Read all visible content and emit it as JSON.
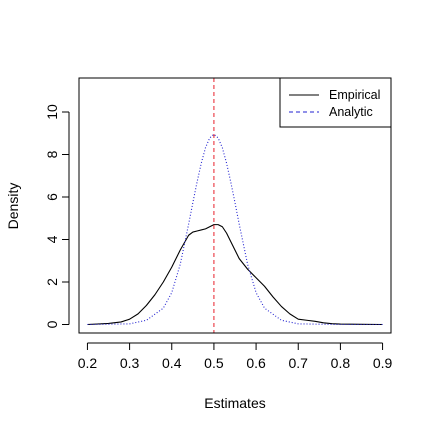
{
  "chart_data": {
    "type": "line",
    "title": "",
    "xlabel": "Estimates",
    "ylabel": "Density",
    "xlim": [
      0.18,
      0.92
    ],
    "ylim": [
      -0.4,
      11.6
    ],
    "x_ticks": [
      0.2,
      0.3,
      0.4,
      0.5,
      0.6,
      0.7,
      0.8,
      0.9
    ],
    "x_tick_labels": [
      "0.2",
      "0.3",
      "0.4",
      "0.5",
      "0.6",
      "0.7",
      "0.8",
      "0.9"
    ],
    "y_ticks": [
      0,
      2,
      4,
      6,
      8,
      10
    ],
    "y_tick_labels": [
      "0",
      "2",
      "4",
      "6",
      "8",
      "10"
    ],
    "grid": false,
    "legend_position": "top-right",
    "reference_line": {
      "x": 0.5,
      "color": "#e8202a",
      "style": "dashed"
    },
    "series": [
      {
        "name": "Empirical",
        "color": "#000000",
        "style": "solid",
        "x": [
          0.2,
          0.25,
          0.28,
          0.3,
          0.32,
          0.34,
          0.36,
          0.38,
          0.4,
          0.42,
          0.44,
          0.45,
          0.46,
          0.47,
          0.48,
          0.49,
          0.5,
          0.51,
          0.52,
          0.53,
          0.54,
          0.55,
          0.56,
          0.58,
          0.6,
          0.62,
          0.64,
          0.66,
          0.68,
          0.7,
          0.72,
          0.74,
          0.76,
          0.78,
          0.8,
          0.85,
          0.9
        ],
        "y": [
          0.0,
          0.05,
          0.12,
          0.25,
          0.5,
          0.9,
          1.4,
          2.0,
          2.7,
          3.5,
          4.2,
          4.35,
          4.4,
          4.45,
          4.5,
          4.6,
          4.7,
          4.7,
          4.6,
          4.3,
          3.9,
          3.5,
          3.1,
          2.6,
          2.2,
          1.8,
          1.3,
          0.85,
          0.5,
          0.25,
          0.2,
          0.15,
          0.08,
          0.04,
          0.02,
          0.01,
          0.0
        ]
      },
      {
        "name": "Analytic",
        "color": "#2020d0",
        "style": "dotted",
        "x": [
          0.2,
          0.3,
          0.34,
          0.38,
          0.4,
          0.42,
          0.44,
          0.45,
          0.46,
          0.47,
          0.48,
          0.49,
          0.5,
          0.51,
          0.52,
          0.53,
          0.54,
          0.55,
          0.56,
          0.58,
          0.6,
          0.62,
          0.66,
          0.7,
          0.8,
          0.9
        ],
        "y": [
          0.0,
          0.03,
          0.2,
          0.77,
          1.5,
          2.82,
          4.72,
          5.73,
          6.7,
          7.59,
          8.32,
          8.78,
          8.95,
          8.78,
          8.32,
          7.59,
          6.7,
          5.73,
          4.72,
          2.82,
          1.5,
          0.77,
          0.2,
          0.03,
          0.0,
          0.0
        ]
      }
    ]
  }
}
